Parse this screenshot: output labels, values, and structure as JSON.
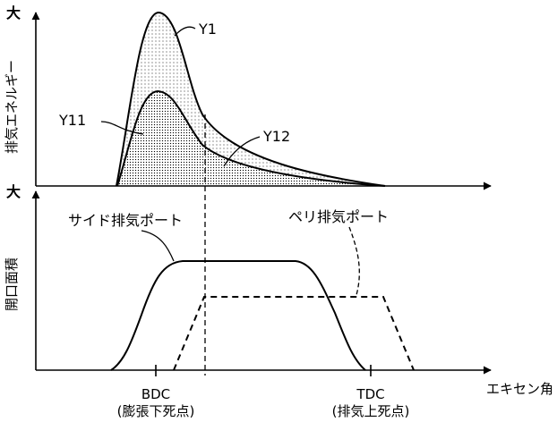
{
  "top_plot": {
    "y_axis_label": "排気エネルギー",
    "y_axis_max_label": "大",
    "curves": [
      {
        "label": "Y1"
      },
      {
        "label": "Y11"
      },
      {
        "label": "Y12"
      }
    ]
  },
  "bottom_plot": {
    "y_axis_label": "開口面積",
    "y_axis_max_label": "大",
    "curves": [
      {
        "label": "サイド排気ポート",
        "style": "solid"
      },
      {
        "label": "ペリ排気ポート",
        "style": "dashed"
      }
    ]
  },
  "x_axis": {
    "label": "エキセン角",
    "ticks": [
      {
        "label": "BDC",
        "sub": "(膨張下死点)"
      },
      {
        "label": "TDC",
        "sub": "(排気上死点)"
      }
    ]
  },
  "colors": {
    "line": "#000000",
    "dots": "#000000",
    "background": "#ffffff"
  }
}
